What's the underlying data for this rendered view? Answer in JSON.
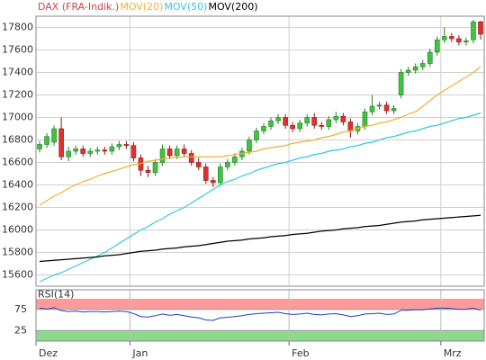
{
  "chart_data": [
    {
      "type": "candlestick",
      "categories": [
        "Dez",
        null,
        null,
        null,
        null,
        null,
        null,
        null,
        null,
        null,
        null,
        null,
        null,
        "Jan",
        null,
        null,
        null,
        null,
        null,
        null,
        null,
        null,
        null,
        null,
        null,
        null,
        null,
        null,
        null,
        null,
        null,
        null,
        null,
        null,
        null,
        "Feb",
        null,
        null,
        null,
        null,
        null,
        null,
        null,
        null,
        null,
        null,
        null,
        null,
        null,
        null,
        null,
        null,
        null,
        null,
        null,
        null,
        "Mrz",
        null,
        null,
        null,
        null,
        null
      ],
      "series": [
        {
          "name": "DAX (FRA-Indik.)",
          "color": "#d84040",
          "up_color": "#44c044",
          "up_edge": "#1f801f",
          "down_color": "#e03030",
          "down_edge": "#901818",
          "open": [
            16720,
            16760,
            16780,
            16900,
            16650,
            16700,
            16720,
            16680,
            16700,
            16710,
            16700,
            16740,
            16760,
            16750,
            16640,
            16530,
            16510,
            16600,
            16720,
            16660,
            16720,
            16680,
            16600,
            16560,
            16440,
            16420,
            16560,
            16600,
            16650,
            16700,
            16800,
            16880,
            16920,
            16970,
            17000,
            16930,
            16900,
            16950,
            17000,
            16930,
            16920,
            16980,
            17010,
            16960,
            16880,
            16920,
            17050,
            17100,
            17110,
            17060,
            17200,
            17400,
            17420,
            17450,
            17480,
            17580,
            17690,
            17720,
            17700,
            17670,
            17690,
            17850
          ],
          "high": [
            16790,
            16860,
            16930,
            17000,
            16740,
            16750,
            16750,
            16730,
            16740,
            16740,
            16770,
            16790,
            16790,
            16780,
            16670,
            16570,
            16630,
            16760,
            16750,
            16750,
            16760,
            16710,
            16640,
            16590,
            16470,
            16590,
            16630,
            16680,
            16730,
            16830,
            16910,
            16950,
            17000,
            17030,
            17030,
            16960,
            16980,
            17030,
            17040,
            16960,
            17010,
            17050,
            17040,
            16990,
            16950,
            17080,
            17200,
            17140,
            17140,
            17110,
            17430,
            17450,
            17480,
            17510,
            17610,
            17720,
            17800,
            17750,
            17730,
            17710,
            17870,
            17860
          ],
          "low": [
            16690,
            16730,
            16750,
            16620,
            16610,
            16670,
            16650,
            16650,
            16670,
            16670,
            16670,
            16710,
            16720,
            16610,
            16480,
            16470,
            16480,
            16570,
            16630,
            16630,
            16650,
            16570,
            16530,
            16410,
            16380,
            16390,
            16530,
            16570,
            16620,
            16670,
            16770,
            16850,
            16890,
            16940,
            16900,
            16870,
            16870,
            16920,
            16900,
            16890,
            16890,
            16950,
            16930,
            16820,
            16850,
            16890,
            17020,
            17070,
            17030,
            17030,
            17170,
            17370,
            17390,
            17420,
            17450,
            17550,
            17660,
            17670,
            17640,
            17640,
            17660,
            17690
          ],
          "close": [
            16760,
            16830,
            16900,
            16650,
            16700,
            16720,
            16680,
            16700,
            16710,
            16700,
            16740,
            16760,
            16750,
            16640,
            16530,
            16510,
            16600,
            16720,
            16660,
            16720,
            16680,
            16600,
            16560,
            16440,
            16420,
            16560,
            16600,
            16650,
            16700,
            16800,
            16880,
            16920,
            16970,
            17000,
            16930,
            16900,
            16950,
            17000,
            16930,
            16920,
            16980,
            17010,
            16960,
            16880,
            16920,
            17050,
            17100,
            17110,
            17060,
            17080,
            17400,
            17420,
            17450,
            17480,
            17580,
            17690,
            17720,
            17700,
            17670,
            17680,
            17850,
            17740
          ]
        },
        {
          "name": "MOV(20)",
          "color": "#f0b030",
          "values": [
            16220,
            16260,
            16300,
            16330,
            16370,
            16400,
            16430,
            16450,
            16480,
            16500,
            16520,
            16540,
            16560,
            16580,
            16590,
            16610,
            16620,
            16630,
            16640,
            16645,
            16650,
            16650,
            16650,
            16650,
            16650,
            16650,
            16660,
            16670,
            16680,
            16690,
            16700,
            16720,
            16730,
            16740,
            16750,
            16770,
            16780,
            16790,
            16800,
            16820,
            16830,
            16850,
            16870,
            16880,
            16900,
            16920,
            16930,
            16950,
            16960,
            16980,
            17000,
            17030,
            17050,
            17100,
            17150,
            17200,
            17240,
            17280,
            17320,
            17360,
            17400,
            17450
          ]
        },
        {
          "name": "MOV(50)",
          "color": "#30c8e8",
          "values": [
            15540,
            15570,
            15600,
            15620,
            15650,
            15680,
            15710,
            15740,
            15770,
            15800,
            15840,
            15880,
            15920,
            15960,
            16000,
            16030,
            16070,
            16100,
            16140,
            16170,
            16200,
            16240,
            16280,
            16320,
            16360,
            16400,
            16430,
            16450,
            16480,
            16500,
            16530,
            16550,
            16570,
            16590,
            16600,
            16620,
            16640,
            16650,
            16670,
            16680,
            16700,
            16710,
            16720,
            16740,
            16750,
            16770,
            16780,
            16800,
            16820,
            16830,
            16850,
            16870,
            16880,
            16900,
            16920,
            16930,
            16950,
            16970,
            16990,
            17000,
            17020,
            17040
          ]
        },
        {
          "name": "MOV(200)",
          "color": "#000000",
          "values": [
            15720,
            15725,
            15730,
            15735,
            15740,
            15745,
            15750,
            15755,
            15760,
            15770,
            15775,
            15780,
            15790,
            15800,
            15810,
            15815,
            15820,
            15830,
            15835,
            15840,
            15850,
            15855,
            15860,
            15870,
            15880,
            15890,
            15900,
            15905,
            15910,
            15920,
            15925,
            15930,
            15940,
            15945,
            15950,
            15960,
            15965,
            15970,
            15980,
            15990,
            15995,
            16000,
            16010,
            16015,
            16020,
            16030,
            16035,
            16040,
            16050,
            16060,
            16070,
            16075,
            16080,
            16090,
            16095,
            16100,
            16105,
            16110,
            16115,
            16120,
            16125,
            16130
          ]
        }
      ],
      "ylim": [
        15500,
        17900
      ],
      "yticks": [
        15600,
        15800,
        16000,
        16200,
        16400,
        16600,
        16800,
        17000,
        17200,
        17400,
        17600,
        17800
      ],
      "grid": true
    },
    {
      "type": "line",
      "title": "RSI(14)",
      "color": "#2040c0",
      "values": [
        78,
        76,
        79,
        72,
        70,
        71,
        69,
        70,
        70,
        69,
        70,
        71,
        70,
        65,
        58,
        57,
        60,
        64,
        61,
        63,
        60,
        57,
        55,
        50,
        49,
        55,
        56,
        58,
        60,
        63,
        65,
        66,
        67,
        68,
        65,
        63,
        64,
        66,
        63,
        62,
        64,
        65,
        62,
        58,
        60,
        64,
        65,
        66,
        63,
        64,
        73,
        73,
        74,
        74,
        76,
        78,
        78,
        77,
        75,
        75,
        78,
        73
      ],
      "ylim": [
        0,
        100
      ],
      "yticks": [
        25,
        75
      ],
      "bands": [
        {
          "from": 75,
          "to": 100,
          "color": "#ff9a9a"
        },
        {
          "from": 0,
          "to": 25,
          "color": "#8ed88e"
        }
      ]
    }
  ]
}
